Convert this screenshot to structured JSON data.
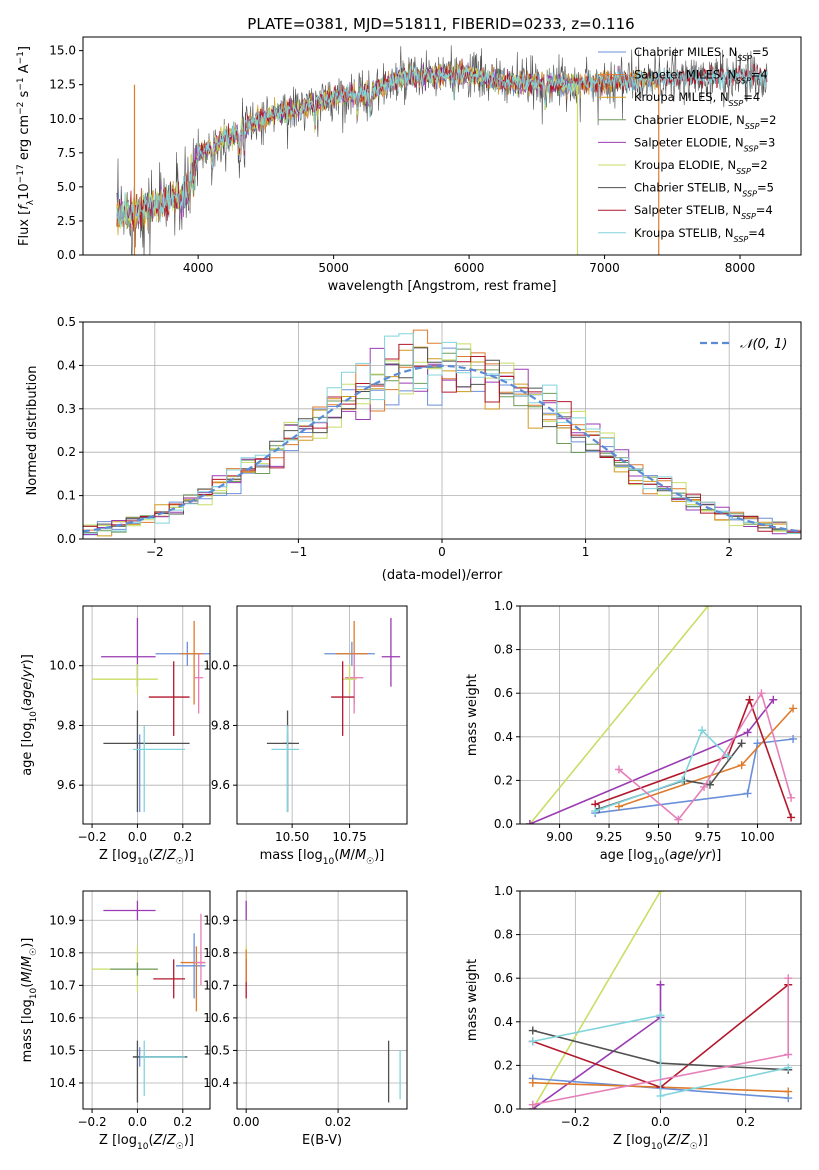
{
  "title": "PLATE=0381, MJD=51811, FIBERID=0233, z=0.116",
  "colors": {
    "chabrier_miles": "#6a8fd9",
    "salpeter_miles": "#dd7b2d",
    "kroupa_miles": "#d09a1f",
    "chabrier_elodie": "#6f9b5c",
    "salpeter_elodie": "#9a3bb3",
    "kroupa_elodie": "#c8de66",
    "chabrier_stelib": "#505050",
    "salpeter_stelib": "#b2182b",
    "kroupa_stelib": "#80d4dc",
    "pink": "#e67fb8",
    "normal": "#5b8bd6"
  },
  "chart_data": [
    {
      "id": "spectrum",
      "type": "line",
      "xlabel": "wavelength [Angstrom, rest frame]",
      "ylabel": "Flux [f_λ 10^-17 erg cm^-2 s^-1 A^-1]",
      "xlim": [
        3150,
        8450
      ],
      "ylim": [
        0,
        16
      ],
      "xticks": [
        "4000",
        "5000",
        "6000",
        "7000",
        "8000"
      ],
      "yticks": [
        "0.0",
        "2.5",
        "5.0",
        "7.5",
        "10.0",
        "12.5",
        "15.0"
      ],
      "legend_position": "right",
      "legend": [
        {
          "label": "Chabrier MILES, N_SSP=5",
          "color": "#6a8fd9"
        },
        {
          "label": "Salpeter MILES, N_SSP=4",
          "color": "#dd7b2d"
        },
        {
          "label": "Kroupa MILES, N_SSP=4",
          "color": "#d09a1f"
        },
        {
          "label": "Chabrier ELODIE, N_SSP=2",
          "color": "#6f9b5c"
        },
        {
          "label": "Salpeter ELODIE, N_SSP=3",
          "color": "#9a3bb3"
        },
        {
          "label": "Kroupa ELODIE, N_SSP=2",
          "color": "#c8de66"
        },
        {
          "label": "Chabrier STELIB, N_SSP=5",
          "color": "#505050"
        },
        {
          "label": "Salpeter STELIB, N_SSP=4",
          "color": "#b2182b"
        },
        {
          "label": "Kroupa STELIB, N_SSP=4",
          "color": "#80d4dc"
        }
      ],
      "continuum": [
        [
          3400,
          3.0
        ],
        [
          3500,
          3.0
        ],
        [
          3600,
          3.3
        ],
        [
          3700,
          3.7
        ],
        [
          3800,
          4.1
        ],
        [
          3900,
          4.2
        ],
        [
          3950,
          6.0
        ],
        [
          4000,
          7.5
        ],
        [
          4100,
          8.0
        ],
        [
          4200,
          8.6
        ],
        [
          4300,
          9.0
        ],
        [
          4400,
          9.7
        ],
        [
          4500,
          10.1
        ],
        [
          4600,
          10.5
        ],
        [
          4700,
          10.6
        ],
        [
          4800,
          10.9
        ],
        [
          4900,
          11.3
        ],
        [
          5000,
          11.6
        ],
        [
          5100,
          11.8
        ],
        [
          5200,
          11.8
        ],
        [
          5300,
          12.1
        ],
        [
          5400,
          12.5
        ],
        [
          5500,
          12.9
        ],
        [
          5600,
          13.0
        ],
        [
          5700,
          13.1
        ],
        [
          5800,
          13.2
        ],
        [
          5900,
          13.3
        ],
        [
          6000,
          13.3
        ],
        [
          6100,
          13.0
        ],
        [
          6200,
          12.8
        ],
        [
          6300,
          12.7
        ],
        [
          6400,
          12.6
        ],
        [
          6500,
          12.6
        ],
        [
          6600,
          12.6
        ],
        [
          6700,
          12.5
        ],
        [
          6800,
          12.5
        ],
        [
          6900,
          12.6
        ],
        [
          7000,
          12.7
        ],
        [
          7100,
          12.8
        ],
        [
          7200,
          12.8
        ],
        [
          7300,
          12.8
        ],
        [
          7400,
          12.9
        ],
        [
          7500,
          12.9
        ],
        [
          7600,
          13.0
        ],
        [
          7700,
          13.0
        ],
        [
          7800,
          13.0
        ],
        [
          7900,
          13.1
        ],
        [
          8000,
          13.1
        ],
        [
          8100,
          13.1
        ],
        [
          8200,
          13.1
        ]
      ]
    },
    {
      "id": "residual-histogram",
      "type": "line",
      "xlabel": "(data-model)/error",
      "ylabel": "Normed distribution",
      "xlim": [
        -2.5,
        2.5
      ],
      "ylim": [
        0,
        0.5
      ],
      "xticks": [
        "−2",
        "−1",
        "0",
        "1",
        "2"
      ],
      "yticks": [
        "0.0",
        "0.1",
        "0.2",
        "0.3",
        "0.4",
        "0.5"
      ],
      "grid": true,
      "legend_position": "top-right",
      "legend_label": "𝒩(0, 1)",
      "bins": 50,
      "bin_range": [
        -2.5,
        2.5
      ]
    },
    {
      "id": "age-vs-Z",
      "type": "scatter",
      "xlabel": "Z [log₁₀(Z/Z☉)]",
      "ylabel": "age  [log₁₀(age/yr)]",
      "xlim": [
        -0.24,
        0.32
      ],
      "ylim": [
        9.47,
        10.2
      ],
      "xticks": [
        "−0.2",
        "0.0",
        "0.2"
      ],
      "yticks": [
        "9.6",
        "9.8",
        "10.0"
      ],
      "grid": true,
      "points": [
        {
          "x": 0.22,
          "y": 10.04,
          "xerr": [
            0.14,
            0.1
          ],
          "yerr": [
            0.04,
            0.04
          ],
          "color": "#6a8fd9"
        },
        {
          "x": 0.25,
          "y": 10.04,
          "xerr": [
            0.06,
            0.04
          ],
          "yerr": [
            0.17,
            0.11
          ],
          "color": "#dd7b2d"
        },
        {
          "x": 0.27,
          "y": 9.96,
          "xerr": [
            0.02,
            0.02
          ],
          "yerr": [
            0.12,
            0.08
          ],
          "color": "#e67fb8"
        },
        {
          "x": 0.0,
          "y": 10.03,
          "xerr": [
            0.16,
            0.08
          ],
          "yerr": [
            0.1,
            0.13
          ],
          "color": "#9a3bb3"
        },
        {
          "x": 0.0,
          "y": 9.955,
          "xerr": [
            0.2,
            0.09
          ],
          "yerr": [
            0.05,
            0.05
          ],
          "color": "#c8de66"
        },
        {
          "x": 0.16,
          "y": 9.895,
          "xerr": [
            0.11,
            0.07
          ],
          "yerr": [
            0.13,
            0.12
          ],
          "color": "#b2182b"
        },
        {
          "x": 0.01,
          "y": 9.74,
          "xerr": [
            0.02,
            0.02
          ],
          "yerr": [
            0.23,
            0.03
          ],
          "color": "#6a8fd9"
        },
        {
          "x": 0.0,
          "y": 9.74,
          "xerr": [
            0.15,
            0.23
          ],
          "yerr": [
            0.23,
            0.11
          ],
          "color": "#505050"
        },
        {
          "x": 0.03,
          "y": 9.72,
          "xerr": [
            0.05,
            0.18
          ],
          "yerr": [
            0.21,
            0.08
          ],
          "color": "#80d4dc"
        }
      ]
    },
    {
      "id": "age-vs-mass",
      "type": "scatter",
      "xlabel": "mass [log₁₀(M/M☉)]",
      "ylabel": "",
      "xlim": [
        10.26,
        11.0
      ],
      "ylim": [
        9.47,
        10.2
      ],
      "xticks": [
        "10.50",
        "10.75"
      ],
      "yticks": [
        "9.6",
        "9.8",
        "10.0"
      ],
      "grid": true,
      "points": [
        {
          "x": 10.76,
          "y": 10.04,
          "xerr": [
            0.12,
            0.1
          ],
          "yerr": [
            0.04,
            0.04
          ],
          "color": "#6a8fd9"
        },
        {
          "x": 10.77,
          "y": 10.04,
          "xerr": [
            0.08,
            0.06
          ],
          "yerr": [
            0.17,
            0.11
          ],
          "color": "#dd7b2d"
        },
        {
          "x": 10.77,
          "y": 9.96,
          "xerr": [
            0.04,
            0.04
          ],
          "yerr": [
            0.12,
            0.08
          ],
          "color": "#e67fb8"
        },
        {
          "x": 10.93,
          "y": 10.03,
          "xerr": [
            0.04,
            0.04
          ],
          "yerr": [
            0.1,
            0.13
          ],
          "color": "#9a3bb3"
        },
        {
          "x": 10.75,
          "y": 9.955,
          "xerr": [
            0.03,
            0.03
          ],
          "yerr": [
            0.05,
            0.05
          ],
          "color": "#c8de66"
        },
        {
          "x": 10.72,
          "y": 9.895,
          "xerr": [
            0.05,
            0.05
          ],
          "yerr": [
            0.13,
            0.12
          ],
          "color": "#b2182b"
        },
        {
          "x": 10.48,
          "y": 9.74,
          "xerr": [
            0.02,
            0.02
          ],
          "yerr": [
            0.23,
            0.03
          ],
          "color": "#6a8fd9"
        },
        {
          "x": 10.48,
          "y": 9.74,
          "xerr": [
            0.09,
            0.05
          ],
          "yerr": [
            0.23,
            0.11
          ],
          "color": "#505050"
        },
        {
          "x": 10.48,
          "y": 9.72,
          "xerr": [
            0.07,
            0.05
          ],
          "yerr": [
            0.21,
            0.08
          ],
          "color": "#80d4dc"
        }
      ]
    },
    {
      "id": "weight-vs-age",
      "type": "line",
      "xlabel": "age  [log₁₀(age/yr)]",
      "ylabel": "mass weight",
      "xlim": [
        8.8,
        10.22
      ],
      "ylim": [
        0,
        1.0
      ],
      "xticks": [
        "9.00",
        "9.25",
        "9.50",
        "9.75",
        "10.00"
      ],
      "yticks": [
        "0.0",
        "0.2",
        "0.4",
        "0.6",
        "0.8",
        "1.0"
      ],
      "grid": true,
      "series": [
        {
          "color": "#c8de66",
          "x": [
            8.85,
            9.75
          ],
          "y": [
            0.0,
            1.0
          ]
        },
        {
          "color": "#9a3bb3",
          "x": [
            8.85,
            9.95,
            10.08
          ],
          "y": [
            0.0,
            0.42,
            0.57
          ]
        },
        {
          "color": "#6a8fd9",
          "x": [
            9.18,
            9.95,
            10.0,
            10.18
          ],
          "y": [
            0.05,
            0.14,
            0.37,
            0.39
          ]
        },
        {
          "color": "#dd7b2d",
          "x": [
            9.3,
            9.92,
            10.18
          ],
          "y": [
            0.08,
            0.27,
            0.53
          ]
        },
        {
          "color": "#b2182b",
          "x": [
            9.18,
            9.85,
            9.96,
            10.17
          ],
          "y": [
            0.09,
            0.31,
            0.57,
            0.03
          ]
        },
        {
          "color": "#505050",
          "x": [
            9.2,
            9.63,
            9.76,
            9.92
          ],
          "y": [
            0.07,
            0.2,
            0.18,
            0.37
          ]
        },
        {
          "color": "#80d4dc",
          "x": [
            9.18,
            9.62,
            9.72,
            9.85
          ],
          "y": [
            0.06,
            0.2,
            0.43,
            0.31
          ]
        },
        {
          "color": "#e67fb8",
          "x": [
            9.3,
            9.6,
            9.73,
            10.02,
            10.17
          ],
          "y": [
            0.25,
            0.02,
            0.17,
            0.6,
            0.12
          ]
        }
      ]
    },
    {
      "id": "mass-vs-Z",
      "type": "scatter",
      "xlabel": "Z [log₁₀(Z/Z☉)]",
      "ylabel": "mass [log₁₀(M/M☉)]",
      "xlim": [
        -0.24,
        0.32
      ],
      "ylim": [
        10.32,
        10.99
      ],
      "xticks": [
        "−0.2",
        "0.0",
        "0.2"
      ],
      "yticks": [
        "10.4",
        "10.5",
        "10.6",
        "10.7",
        "10.8",
        "10.9"
      ],
      "grid": true,
      "points": [
        {
          "x": 0.25,
          "y": 10.76,
          "xerr": [
            0.08,
            0.05
          ],
          "yerr": [
            0.1,
            0.1
          ],
          "color": "#6a8fd9"
        },
        {
          "x": 0.26,
          "y": 10.77,
          "xerr": [
            0.07,
            0.04
          ],
          "yerr": [
            0.15,
            0.05
          ],
          "color": "#dd7b2d"
        },
        {
          "x": 0.28,
          "y": 10.77,
          "xerr": [
            0.03,
            0.02
          ],
          "yerr": [
            0.07,
            0.15
          ],
          "color": "#e67fb8"
        },
        {
          "x": 0.0,
          "y": 10.93,
          "xerr": [
            0.15,
            0.08
          ],
          "yerr": [
            0.03,
            0.03
          ],
          "color": "#9a3bb3"
        },
        {
          "x": 0.0,
          "y": 10.75,
          "xerr": [
            0.2,
            0.09
          ],
          "yerr": [
            0.07,
            0.07
          ],
          "color": "#c8de66"
        },
        {
          "x": 0.0,
          "y": 10.75,
          "xerr": [
            0.12,
            0.09
          ],
          "yerr": [
            0.02,
            0.02
          ],
          "color": "#6f9b5c"
        },
        {
          "x": 0.16,
          "y": 10.72,
          "xerr": [
            0.09,
            0.05
          ],
          "yerr": [
            0.06,
            0.06
          ],
          "color": "#b2182b"
        },
        {
          "x": 0.01,
          "y": 10.48,
          "xerr": [
            0.03,
            0.2
          ],
          "yerr": [
            0.03,
            0.03
          ],
          "color": "#6a8fd9"
        },
        {
          "x": 0.0,
          "y": 10.48,
          "xerr": [
            0.02,
            0.22
          ],
          "yerr": [
            0.14,
            0.05
          ],
          "color": "#505050"
        },
        {
          "x": 0.03,
          "y": 10.48,
          "xerr": [
            0.02,
            0.18
          ],
          "yerr": [
            0.12,
            0.05
          ],
          "color": "#80d4dc"
        }
      ]
    },
    {
      "id": "mass-vs-EBV",
      "type": "scatter",
      "xlabel": "E(B-V)",
      "ylabel": "",
      "xlim": [
        -0.002,
        0.035
      ],
      "ylim": [
        10.32,
        10.99
      ],
      "xticks": [
        "0.00",
        "0.02"
      ],
      "yticks": [
        "10.4",
        "10.5",
        "10.6",
        "10.7",
        "10.8",
        "10.9"
      ],
      "grid": true,
      "points": [
        {
          "x": 0.0,
          "y": 10.93,
          "xerr": [
            0,
            0
          ],
          "yerr": [
            0.03,
            0.03
          ],
          "color": "#9a3bb3"
        },
        {
          "x": 0.0,
          "y": 10.77,
          "xerr": [
            0,
            0
          ],
          "yerr": [
            0.07,
            0.05
          ],
          "color": "#c8de66"
        },
        {
          "x": 0.0,
          "y": 10.72,
          "xerr": [
            0,
            0
          ],
          "yerr": [
            0.06,
            0.06
          ],
          "color": "#b2182b"
        },
        {
          "x": 0.0,
          "y": 10.76,
          "xerr": [
            0,
            0
          ],
          "yerr": [
            0.05,
            0.05
          ],
          "color": "#dd7b2d"
        },
        {
          "x": 0.031,
          "y": 10.45,
          "xerr": [
            0,
            0
          ],
          "yerr": [
            0.11,
            0.08
          ],
          "color": "#505050"
        },
        {
          "x": 0.0335,
          "y": 10.43,
          "xerr": [
            0,
            0
          ],
          "yerr": [
            0.08,
            0.07
          ],
          "color": "#80d4dc"
        }
      ]
    },
    {
      "id": "weight-vs-Z",
      "type": "line",
      "xlabel": "Z [log₁₀(Z/Z☉)]",
      "ylabel": "mass weight",
      "xlim": [
        -0.33,
        0.33
      ],
      "ylim": [
        0,
        1.0
      ],
      "xticks": [
        "−0.2",
        "0.0",
        "0.2"
      ],
      "yticks": [
        "0.0",
        "0.2",
        "0.4",
        "0.6",
        "0.8",
        "1.0"
      ],
      "grid": true,
      "series": [
        {
          "color": "#c8de66",
          "x": [
            -0.3,
            0.0
          ],
          "y": [
            0.0,
            1.0
          ]
        },
        {
          "color": "#9a3bb3",
          "x": [
            -0.3,
            0.0,
            0.0
          ],
          "y": [
            0.0,
            0.42,
            0.57
          ]
        },
        {
          "color": "#6a8fd9",
          "x": [
            -0.3,
            0.3
          ],
          "y": [
            0.14,
            0.05
          ]
        },
        {
          "color": "#dd7b2d",
          "x": [
            -0.3,
            0.3
          ],
          "y": [
            0.12,
            0.08
          ]
        },
        {
          "color": "#b2182b",
          "x": [
            -0.3,
            0.0,
            0.3
          ],
          "y": [
            0.31,
            0.1,
            0.57
          ]
        },
        {
          "color": "#505050",
          "x": [
            -0.3,
            0.0,
            0.3
          ],
          "y": [
            0.36,
            0.21,
            0.18
          ]
        },
        {
          "color": "#80d4dc",
          "x": [
            -0.3,
            0.0,
            0.0,
            0.3
          ],
          "y": [
            0.31,
            0.43,
            0.06,
            0.19
          ]
        },
        {
          "color": "#e67fb8",
          "x": [
            -0.3,
            0.3,
            0.3
          ],
          "y": [
            0.02,
            0.25,
            0.6
          ]
        }
      ]
    }
  ]
}
